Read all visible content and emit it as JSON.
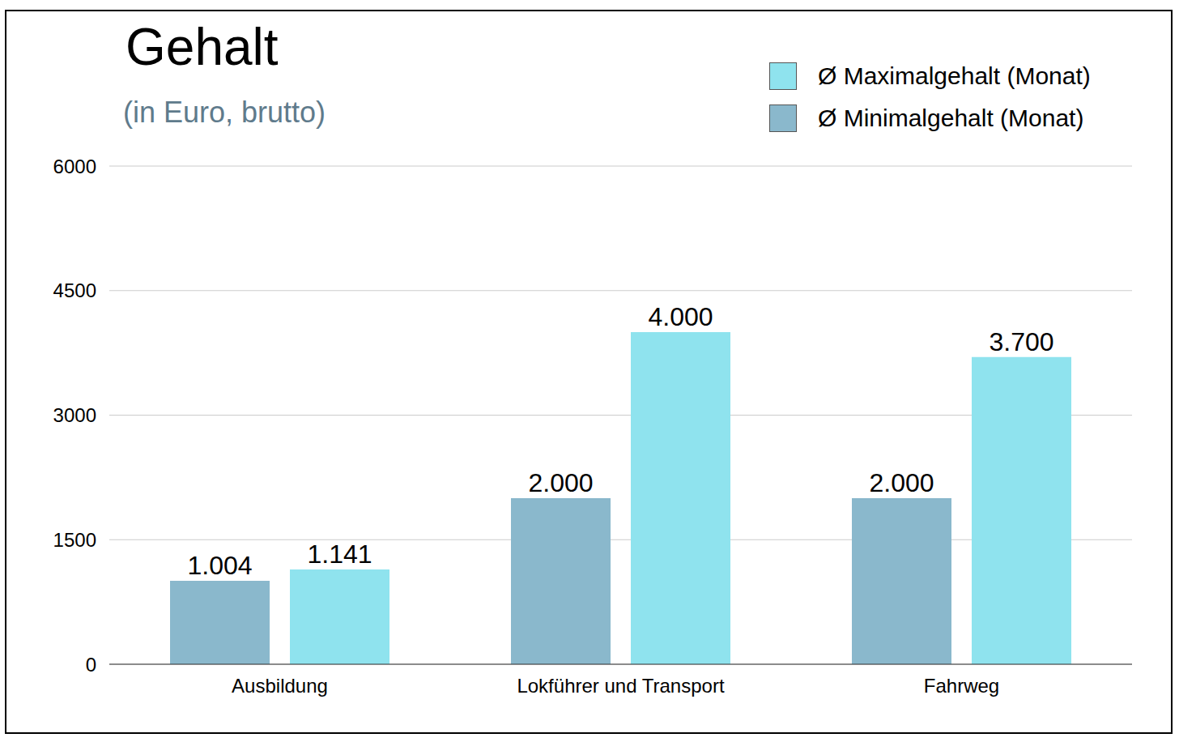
{
  "chart_data": {
    "type": "bar",
    "title": "Gehalt",
    "subtitle": "(in Euro, brutto)",
    "categories": [
      "Ausbildung",
      "Lokführer und Transport",
      "Fahrweg"
    ],
    "series": [
      {
        "name": "Ø Minimalgehalt (Monat)",
        "color": "#8ab8cc",
        "values": [
          1004,
          2000,
          2000
        ],
        "value_labels": [
          "1.004",
          "2.000",
          "2.000"
        ]
      },
      {
        "name": "Ø Maximalgehalt (Monat)",
        "color": "#8fe3ee",
        "values": [
          1141,
          4000,
          3700
        ],
        "value_labels": [
          "1.141",
          "4.000",
          "3.700"
        ]
      }
    ],
    "ylim": [
      0,
      6000
    ],
    "yticks": [
      0,
      1500,
      3000,
      4500,
      6000
    ],
    "grid": true,
    "legend": "upper right",
    "data_labels": true
  }
}
